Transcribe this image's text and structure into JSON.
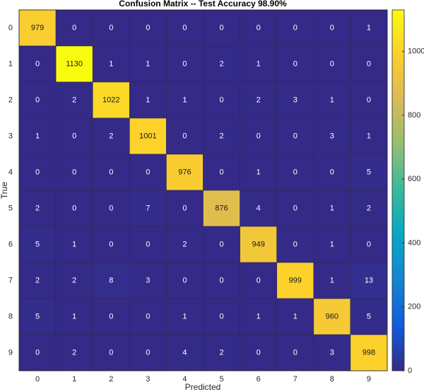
{
  "chart_data": {
    "type": "heatmap",
    "title": "Confusion Matrix -- Test Accuracy 98.90%",
    "x_label": "Predicted",
    "y_label": "True",
    "x_categories": [
      "0",
      "1",
      "2",
      "3",
      "4",
      "5",
      "6",
      "7",
      "8",
      "9"
    ],
    "y_categories": [
      "0",
      "1",
      "2",
      "3",
      "4",
      "5",
      "6",
      "7",
      "8",
      "9"
    ],
    "values": [
      [
        979,
        0,
        0,
        0,
        0,
        0,
        0,
        0,
        0,
        1
      ],
      [
        0,
        1130,
        1,
        1,
        0,
        2,
        1,
        0,
        0,
        0
      ],
      [
        0,
        2,
        1022,
        1,
        1,
        0,
        2,
        3,
        1,
        0
      ],
      [
        1,
        0,
        2,
        1001,
        0,
        2,
        0,
        0,
        3,
        1
      ],
      [
        0,
        0,
        0,
        0,
        976,
        0,
        1,
        0,
        0,
        5
      ],
      [
        2,
        0,
        0,
        7,
        0,
        876,
        4,
        0,
        1,
        2
      ],
      [
        5,
        1,
        0,
        0,
        2,
        0,
        949,
        0,
        1,
        0
      ],
      [
        2,
        2,
        8,
        3,
        0,
        0,
        0,
        999,
        1,
        13
      ],
      [
        5,
        1,
        0,
        0,
        1,
        0,
        1,
        1,
        960,
        5
      ],
      [
        0,
        2,
        0,
        0,
        4,
        2,
        0,
        0,
        3,
        998
      ]
    ],
    "colormap": "parula",
    "clim": [
      0,
      1130
    ],
    "cticks": [
      0,
      200,
      400,
      600,
      800,
      1000
    ]
  }
}
